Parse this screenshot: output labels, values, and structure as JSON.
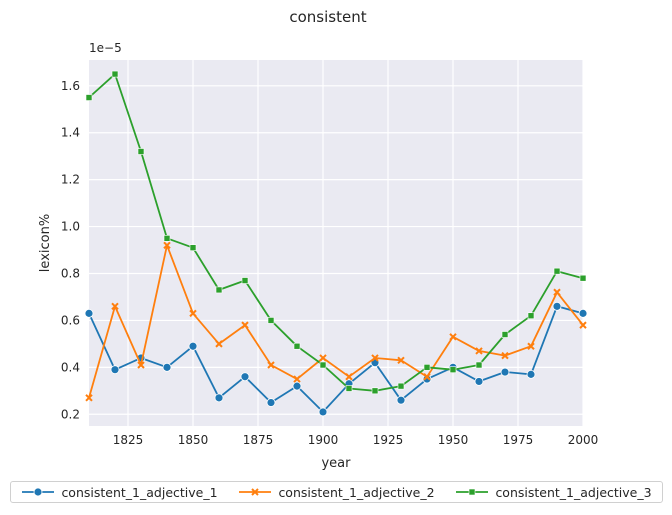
{
  "chart_data": {
    "type": "line",
    "title": "consistent",
    "xlabel": "year",
    "ylabel": "lexicon%",
    "offset_label": "1e−5",
    "xlim": [
      1810,
      2000
    ],
    "ylim": [
      0.15,
      1.71
    ],
    "xticks": [
      1825,
      1850,
      1875,
      1900,
      1925,
      1950,
      1975,
      2000
    ],
    "yticks": [
      0.2,
      0.4,
      0.6,
      0.8,
      1.0,
      1.2,
      1.4,
      1.6
    ],
    "grid": true,
    "legend_position": "bottom",
    "x": [
      1810,
      1820,
      1830,
      1840,
      1850,
      1860,
      1870,
      1880,
      1890,
      1900,
      1910,
      1920,
      1930,
      1940,
      1950,
      1960,
      1970,
      1980,
      1990,
      2000
    ],
    "series": [
      {
        "name": "consistent_1_adjective_1",
        "color": "#1f77b4",
        "marker": "circle",
        "values": [
          0.63,
          0.39,
          0.44,
          0.4,
          0.49,
          0.27,
          0.36,
          0.25,
          0.32,
          0.21,
          0.33,
          0.42,
          0.26,
          0.35,
          0.4,
          0.34,
          0.38,
          0.37,
          0.66,
          0.63
        ]
      },
      {
        "name": "consistent_1_adjective_2",
        "color": "#ff7f0e",
        "marker": "x",
        "values": [
          0.27,
          0.66,
          0.41,
          0.92,
          0.63,
          0.5,
          0.58,
          0.41,
          0.35,
          0.44,
          0.36,
          0.44,
          0.43,
          0.36,
          0.53,
          0.47,
          0.45,
          0.49,
          0.72,
          0.58
        ]
      },
      {
        "name": "consistent_1_adjective_3",
        "color": "#2ca02c",
        "marker": "square",
        "values": [
          1.55,
          1.65,
          1.32,
          0.95,
          0.91,
          0.73,
          0.77,
          0.6,
          0.49,
          0.41,
          0.31,
          0.3,
          0.32,
          0.4,
          0.39,
          0.41,
          0.54,
          0.62,
          0.81,
          0.78
        ]
      }
    ]
  }
}
